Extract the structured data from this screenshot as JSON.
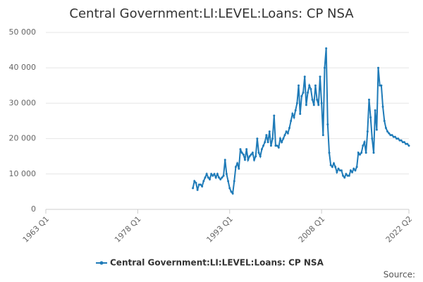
{
  "chart_data": {
    "type": "line",
    "title": "Central Government:LI:LEVEL:Loans: CP NSA",
    "source": "Source:",
    "x": [
      "1987 Q1",
      "1987 Q2",
      "1987 Q3",
      "1987 Q4",
      "1988 Q1",
      "1988 Q2",
      "1988 Q3",
      "1988 Q4",
      "1989 Q1",
      "1989 Q2",
      "1989 Q3",
      "1989 Q4",
      "1990 Q1",
      "1990 Q2",
      "1990 Q3",
      "1990 Q4",
      "1991 Q1",
      "1991 Q2",
      "1991 Q3",
      "1991 Q4",
      "1992 Q1",
      "1992 Q2",
      "1992 Q3",
      "1992 Q4",
      "1993 Q1",
      "1993 Q2",
      "1993 Q3",
      "1993 Q4",
      "1994 Q1",
      "1994 Q2",
      "1994 Q3",
      "1994 Q4",
      "1995 Q1",
      "1995 Q2",
      "1995 Q3",
      "1995 Q4",
      "1996 Q1",
      "1996 Q2",
      "1996 Q3",
      "1996 Q4",
      "1997 Q1",
      "1997 Q2",
      "1997 Q3",
      "1997 Q4",
      "1998 Q1",
      "1998 Q2",
      "1998 Q3",
      "1998 Q4",
      "1999 Q1",
      "1999 Q2",
      "1999 Q3",
      "1999 Q4",
      "2000 Q1",
      "2000 Q2",
      "2000 Q3",
      "2000 Q4",
      "2001 Q1",
      "2001 Q2",
      "2001 Q3",
      "2001 Q4",
      "2002 Q1",
      "2002 Q2",
      "2002 Q3",
      "2002 Q4",
      "2003 Q1",
      "2003 Q2",
      "2003 Q3",
      "2003 Q4",
      "2004 Q1",
      "2004 Q2",
      "2004 Q3",
      "2004 Q4",
      "2005 Q1",
      "2005 Q2",
      "2005 Q3",
      "2005 Q4",
      "2006 Q1",
      "2006 Q2",
      "2006 Q3",
      "2006 Q4",
      "2007 Q1",
      "2007 Q2",
      "2007 Q3",
      "2007 Q4",
      "2008 Q1",
      "2008 Q2",
      "2008 Q3",
      "2008 Q4",
      "2009 Q1",
      "2009 Q2",
      "2009 Q3",
      "2009 Q4",
      "2010 Q1",
      "2010 Q2",
      "2010 Q3",
      "2010 Q4",
      "2011 Q1",
      "2011 Q2",
      "2011 Q3",
      "2011 Q4",
      "2012 Q1",
      "2012 Q2",
      "2012 Q3",
      "2012 Q4",
      "2013 Q1",
      "2013 Q2",
      "2013 Q3",
      "2013 Q4",
      "2014 Q1",
      "2014 Q2",
      "2014 Q3",
      "2014 Q4",
      "2015 Q1",
      "2015 Q2",
      "2015 Q3",
      "2015 Q4",
      "2016 Q1",
      "2016 Q2",
      "2016 Q3",
      "2016 Q4",
      "2017 Q1",
      "2017 Q2",
      "2017 Q3",
      "2017 Q4",
      "2018 Q1",
      "2018 Q2",
      "2018 Q3",
      "2018 Q4",
      "2019 Q1",
      "2019 Q2",
      "2019 Q3",
      "2019 Q4",
      "2020 Q1",
      "2020 Q2",
      "2020 Q3",
      "2020 Q4",
      "2021 Q1",
      "2021 Q2",
      "2021 Q3",
      "2021 Q4",
      "2022 Q1",
      "2022 Q2"
    ],
    "series": [
      {
        "name": "Central Government:LI:LEVEL:Loans: CP NSA",
        "color": "#1f7bb8",
        "values": [
          6000,
          8000,
          7500,
          5500,
          7000,
          7000,
          6500,
          8000,
          9000,
          10000,
          9000,
          8500,
          10000,
          9500,
          10000,
          9000,
          10000,
          9000,
          8500,
          9000,
          9500,
          14000,
          10000,
          8000,
          6000,
          5000,
          4500,
          8000,
          12000,
          13000,
          11500,
          17000,
          16000,
          15500,
          14000,
          17000,
          14000,
          15000,
          15500,
          16000,
          14000,
          15000,
          20000,
          16000,
          15000,
          17000,
          18000,
          19000,
          21000,
          19000,
          22000,
          18000,
          20000,
          26500,
          18000,
          18000,
          17500,
          20000,
          19000,
          20000,
          21000,
          22000,
          21500,
          23000,
          25000,
          27000,
          26000,
          28000,
          30000,
          35000,
          27000,
          32000,
          33000,
          37500,
          29500,
          33000,
          35000,
          34000,
          31000,
          29500,
          35000,
          31000,
          29500,
          37500,
          30000,
          21000,
          40000,
          45500,
          24000,
          16000,
          12500,
          12000,
          13000,
          12000,
          10500,
          11500,
          11000,
          11000,
          9500,
          9000,
          10000,
          9500,
          9500,
          11000,
          10500,
          11500,
          11000,
          12000,
          16000,
          15500,
          16000,
          18000,
          19000,
          16000,
          22000,
          31000,
          26000,
          20000,
          16000,
          28000,
          22500,
          40000,
          35000,
          35000,
          29000,
          25000,
          23000,
          22000,
          21500,
          21000,
          21000,
          20500,
          20500,
          20000,
          20000,
          19500,
          19500,
          19000,
          19000,
          18500,
          18500,
          18000
        ]
      }
    ],
    "xlim": [
      "1963 Q1",
      "2022 Q2"
    ],
    "xticks": [
      "1963 Q1",
      "1978 Q1",
      "1993 Q1",
      "2008 Q1",
      "2022 Q2"
    ],
    "ylim": [
      0,
      50000
    ],
    "yticks": [
      0,
      {
        "value": 10000,
        "label": "10 000"
      },
      {
        "value": 20000,
        "label": "20 000"
      },
      {
        "value": 30000,
        "label": "30 000"
      },
      {
        "value": 40000,
        "label": "40 000"
      },
      {
        "value": 50000,
        "label": "50 000"
      }
    ],
    "grid": true
  }
}
